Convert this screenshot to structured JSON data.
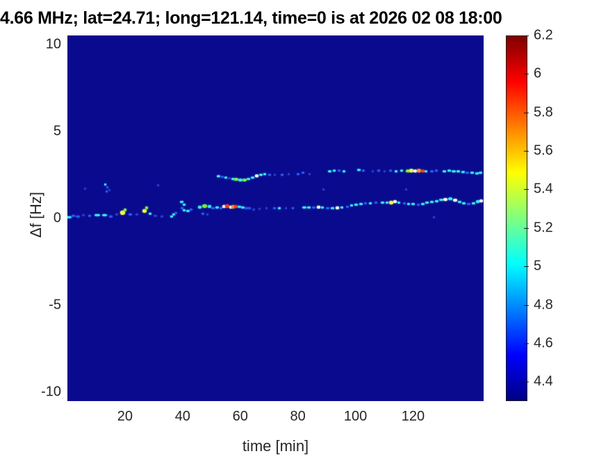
{
  "title": "4.66 MHz;  lat=24.71; long=121.14, time=0 is at 2026 02 08 18:00",
  "chart_data": {
    "type": "heatmap",
    "title": "4.66 MHz;  lat=24.71; long=121.14, time=0 is at 2026 02 08 18:00",
    "xlabel": "time [min]",
    "ylabel": "Δf [Hz]",
    "xlim": [
      0,
      144.5
    ],
    "ylim": [
      -10.5,
      10.5
    ],
    "x_ticks": [
      20,
      40,
      60,
      80,
      100,
      120
    ],
    "y_ticks": [
      10,
      5,
      0,
      -5,
      -10
    ],
    "grid": false,
    "background_color": "#0a0a8e",
    "colorbar": {
      "colormap": "jet",
      "min": 4.3,
      "max": 6.2,
      "tick_values": [
        6.2,
        6,
        5.8,
        5.6,
        5.4,
        5.2,
        5,
        4.8,
        4.6,
        4.4
      ],
      "tick_labels": [
        "6.2",
        "6",
        "5.8",
        "5.6",
        "5.4",
        "5.2",
        "5",
        "4.8",
        "4.6",
        "4.4"
      ]
    },
    "palette": {
      "d": "#2a3ac2",
      "b": "#2858f0",
      "c": "#38e4ee",
      "g": "#7ce83c",
      "y": "#f4f43c",
      "o": "#f49026",
      "r": "#ee3c1e",
      "w": "#e6fbee"
    },
    "points_format": [
      "time_min",
      "delta_f_hz",
      "color_key",
      "w_px",
      "h_px"
    ],
    "points": [
      [
        0.3,
        0.08,
        "c",
        9,
        3
      ],
      [
        2.0,
        0.14,
        "b",
        5,
        3
      ],
      [
        3.6,
        0.1,
        "b",
        6,
        3
      ],
      [
        5.6,
        0.18,
        "d",
        4,
        3
      ],
      [
        7.8,
        0.14,
        "b",
        4,
        3
      ],
      [
        10.4,
        0.18,
        "c",
        8,
        3
      ],
      [
        12.9,
        0.18,
        "c",
        7,
        3
      ],
      [
        15.1,
        0.12,
        "b",
        5,
        3
      ],
      [
        17.1,
        0.22,
        "d",
        4,
        3
      ],
      [
        19.2,
        0.32,
        "y",
        7,
        6
      ],
      [
        19.9,
        0.5,
        "g",
        4,
        4
      ],
      [
        21.9,
        0.24,
        "b",
        5,
        3
      ],
      [
        24.0,
        0.22,
        "d",
        4,
        3
      ],
      [
        26.8,
        0.42,
        "y",
        6,
        5
      ],
      [
        27.6,
        0.62,
        "g",
        4,
        4
      ],
      [
        28.6,
        0.28,
        "c",
        4,
        3
      ],
      [
        30.6,
        0.14,
        "d",
        5,
        3
      ],
      [
        32.8,
        0.1,
        "d",
        4,
        3
      ],
      [
        36.2,
        0.1,
        "c",
        4,
        3
      ],
      [
        36.9,
        0.22,
        "c",
        4,
        3
      ],
      [
        37.7,
        0.3,
        "b",
        4,
        3
      ],
      [
        39.7,
        0.95,
        "c",
        5,
        3
      ],
      [
        40.4,
        0.78,
        "c",
        4,
        3
      ],
      [
        39.9,
        0.6,
        "b",
        4,
        3
      ],
      [
        40.5,
        0.45,
        "c",
        4,
        3
      ],
      [
        41.9,
        0.42,
        "c",
        5,
        3
      ],
      [
        42.9,
        0.52,
        "b",
        4,
        3
      ],
      [
        45.9,
        0.66,
        "c",
        5,
        4
      ],
      [
        47.6,
        0.72,
        "g",
        7,
        5
      ],
      [
        49.2,
        0.68,
        "c",
        5,
        4
      ],
      [
        50.6,
        0.58,
        "b",
        5,
        3
      ],
      [
        52.0,
        0.62,
        "c",
        5,
        3
      ],
      [
        53.2,
        0.58,
        "b",
        4,
        3
      ],
      [
        54.4,
        0.68,
        "w",
        5,
        4
      ],
      [
        55.4,
        0.7,
        "r",
        6,
        5
      ],
      [
        56.6,
        0.64,
        "w",
        4,
        4
      ],
      [
        57.5,
        0.68,
        "o",
        5,
        5
      ],
      [
        58.6,
        0.7,
        "r",
        5,
        4
      ],
      [
        59.7,
        0.68,
        "c",
        5,
        3
      ],
      [
        60.9,
        0.62,
        "c",
        5,
        3
      ],
      [
        62.1,
        0.58,
        "b",
        5,
        3
      ],
      [
        63.3,
        0.6,
        "b",
        4,
        3
      ],
      [
        64.7,
        0.52,
        "d",
        4,
        3
      ],
      [
        66.6,
        0.56,
        "d",
        3,
        3
      ],
      [
        69.1,
        0.6,
        "d",
        3,
        3
      ],
      [
        47.1,
        0.28,
        "b",
        4,
        3
      ],
      [
        48.5,
        0.22,
        "d",
        3,
        3
      ],
      [
        71.8,
        0.58,
        "b",
        4,
        3
      ],
      [
        73.6,
        0.6,
        "c",
        4,
        3
      ],
      [
        75.9,
        0.58,
        "d",
        3,
        3
      ],
      [
        78.3,
        0.6,
        "b",
        3,
        3
      ],
      [
        82.2,
        0.62,
        "c",
        6,
        3
      ],
      [
        83.9,
        0.64,
        "c",
        5,
        3
      ],
      [
        85.5,
        0.62,
        "b",
        5,
        3
      ],
      [
        87.1,
        0.66,
        "w",
        5,
        4
      ],
      [
        88.6,
        0.64,
        "c",
        4,
        3
      ],
      [
        90.4,
        0.6,
        "b",
        5,
        3
      ],
      [
        92.1,
        0.58,
        "c",
        5,
        3
      ],
      [
        93.7,
        0.6,
        "w",
        5,
        4
      ],
      [
        95.3,
        0.63,
        "c",
        4,
        3
      ],
      [
        97.1,
        0.68,
        "b",
        4,
        3
      ],
      [
        98.7,
        0.73,
        "c",
        4,
        3
      ],
      [
        100.3,
        0.78,
        "c",
        5,
        3
      ],
      [
        101.9,
        0.83,
        "c",
        5,
        3
      ],
      [
        103.5,
        0.86,
        "b",
        4,
        3
      ],
      [
        105.2,
        0.88,
        "c",
        4,
        3
      ],
      [
        107.0,
        0.9,
        "b",
        4,
        3
      ],
      [
        109.4,
        0.9,
        "c",
        5,
        3
      ],
      [
        110.9,
        0.92,
        "c",
        4,
        3
      ],
      [
        112.5,
        0.92,
        "y",
        6,
        5
      ],
      [
        113.7,
        0.95,
        "w",
        5,
        4
      ],
      [
        115.1,
        0.9,
        "c",
        4,
        3
      ],
      [
        116.9,
        0.87,
        "b",
        4,
        3
      ],
      [
        118.5,
        0.84,
        "c",
        4,
        3
      ],
      [
        120.1,
        0.81,
        "c",
        5,
        3
      ],
      [
        121.7,
        0.79,
        "b",
        4,
        3
      ],
      [
        123.3,
        0.84,
        "c",
        5,
        3
      ],
      [
        124.9,
        0.89,
        "c",
        5,
        3
      ],
      [
        126.5,
        0.94,
        "c",
        5,
        3
      ],
      [
        128.1,
        1.0,
        "c",
        5,
        3
      ],
      [
        129.7,
        1.05,
        "c",
        6,
        3
      ],
      [
        131.3,
        1.08,
        "w",
        6,
        4
      ],
      [
        132.9,
        1.1,
        "c",
        6,
        4
      ],
      [
        134.5,
        1.05,
        "w",
        6,
        4
      ],
      [
        136.1,
        0.95,
        "c",
        5,
        3
      ],
      [
        137.7,
        0.86,
        "c",
        5,
        3
      ],
      [
        139.3,
        0.82,
        "b",
        5,
        3
      ],
      [
        140.9,
        0.88,
        "c",
        5,
        3
      ],
      [
        142.5,
        0.95,
        "c",
        5,
        4
      ],
      [
        143.7,
        1.0,
        "w",
        5,
        4
      ],
      [
        52.4,
        2.42,
        "c",
        5,
        3
      ],
      [
        53.8,
        2.38,
        "b",
        4,
        3
      ],
      [
        55.1,
        2.34,
        "c",
        4,
        3
      ],
      [
        56.3,
        2.3,
        "d",
        4,
        3
      ],
      [
        57.5,
        2.27,
        "c",
        5,
        3
      ],
      [
        58.7,
        2.24,
        "g",
        6,
        4
      ],
      [
        60.1,
        2.21,
        "c",
        6,
        4
      ],
      [
        61.5,
        2.19,
        "g",
        6,
        4
      ],
      [
        62.9,
        2.24,
        "c",
        5,
        3
      ],
      [
        64.3,
        2.33,
        "c",
        5,
        3
      ],
      [
        65.7,
        2.44,
        "w",
        5,
        4
      ],
      [
        67.1,
        2.5,
        "c",
        5,
        3
      ],
      [
        68.5,
        2.52,
        "c",
        4,
        3
      ],
      [
        70.1,
        2.5,
        "b",
        4,
        3
      ],
      [
        72.1,
        2.48,
        "d",
        3,
        3
      ],
      [
        74.5,
        2.5,
        "b",
        4,
        3
      ],
      [
        76.9,
        2.52,
        "d",
        3,
        3
      ],
      [
        80.1,
        2.55,
        "b",
        4,
        3
      ],
      [
        81.7,
        2.6,
        "b",
        4,
        3
      ],
      [
        84.1,
        2.55,
        "d",
        3,
        3
      ],
      [
        91.1,
        2.7,
        "c",
        5,
        3
      ],
      [
        92.7,
        2.75,
        "c",
        4,
        3
      ],
      [
        94.3,
        2.72,
        "b",
        4,
        3
      ],
      [
        95.9,
        2.68,
        "c",
        4,
        3
      ],
      [
        101.1,
        2.78,
        "c",
        5,
        3
      ],
      [
        102.7,
        2.72,
        "b",
        4,
        3
      ],
      [
        106.1,
        2.7,
        "d",
        3,
        3
      ],
      [
        108.1,
        2.72,
        "b",
        4,
        3
      ],
      [
        110.1,
        2.7,
        "d",
        3,
        3
      ],
      [
        112.1,
        2.72,
        "b",
        4,
        3
      ],
      [
        114.1,
        2.7,
        "c",
        4,
        3
      ],
      [
        116.1,
        2.72,
        "c",
        4,
        3
      ],
      [
        118.3,
        2.7,
        "g",
        6,
        4
      ],
      [
        119.5,
        2.72,
        "y",
        6,
        5
      ],
      [
        120.7,
        2.7,
        "w",
        5,
        4
      ],
      [
        122.1,
        2.72,
        "o",
        6,
        5
      ],
      [
        123.3,
        2.7,
        "r",
        5,
        4
      ],
      [
        124.5,
        2.68,
        "c",
        4,
        3
      ],
      [
        126.5,
        2.7,
        "b",
        5,
        3
      ],
      [
        128.1,
        2.72,
        "b",
        4,
        3
      ],
      [
        130.9,
        2.7,
        "c",
        5,
        3
      ],
      [
        132.5,
        2.72,
        "c",
        5,
        3
      ],
      [
        134.1,
        2.7,
        "c",
        6,
        3
      ],
      [
        135.7,
        2.68,
        "c",
        5,
        3
      ],
      [
        137.3,
        2.65,
        "c",
        5,
        3
      ],
      [
        138.9,
        2.62,
        "b",
        5,
        3
      ],
      [
        140.5,
        2.6,
        "c",
        5,
        3
      ],
      [
        142.1,
        2.58,
        "c",
        5,
        3
      ],
      [
        143.5,
        2.6,
        "c",
        5,
        3
      ],
      [
        6.1,
        1.7,
        "d",
        3,
        3
      ],
      [
        13.1,
        1.95,
        "c",
        3,
        3
      ],
      [
        13.9,
        1.76,
        "b",
        3,
        3
      ],
      [
        14.7,
        1.6,
        "d",
        3,
        3
      ],
      [
        13.5,
        1.52,
        "b",
        3,
        3
      ],
      [
        31.5,
        1.9,
        "d",
        3,
        3
      ],
      [
        88.8,
        1.67,
        "d",
        3,
        3
      ],
      [
        117.6,
        1.67,
        "d",
        3,
        3
      ],
      [
        127.3,
        0.08,
        "d",
        3,
        3
      ]
    ]
  }
}
